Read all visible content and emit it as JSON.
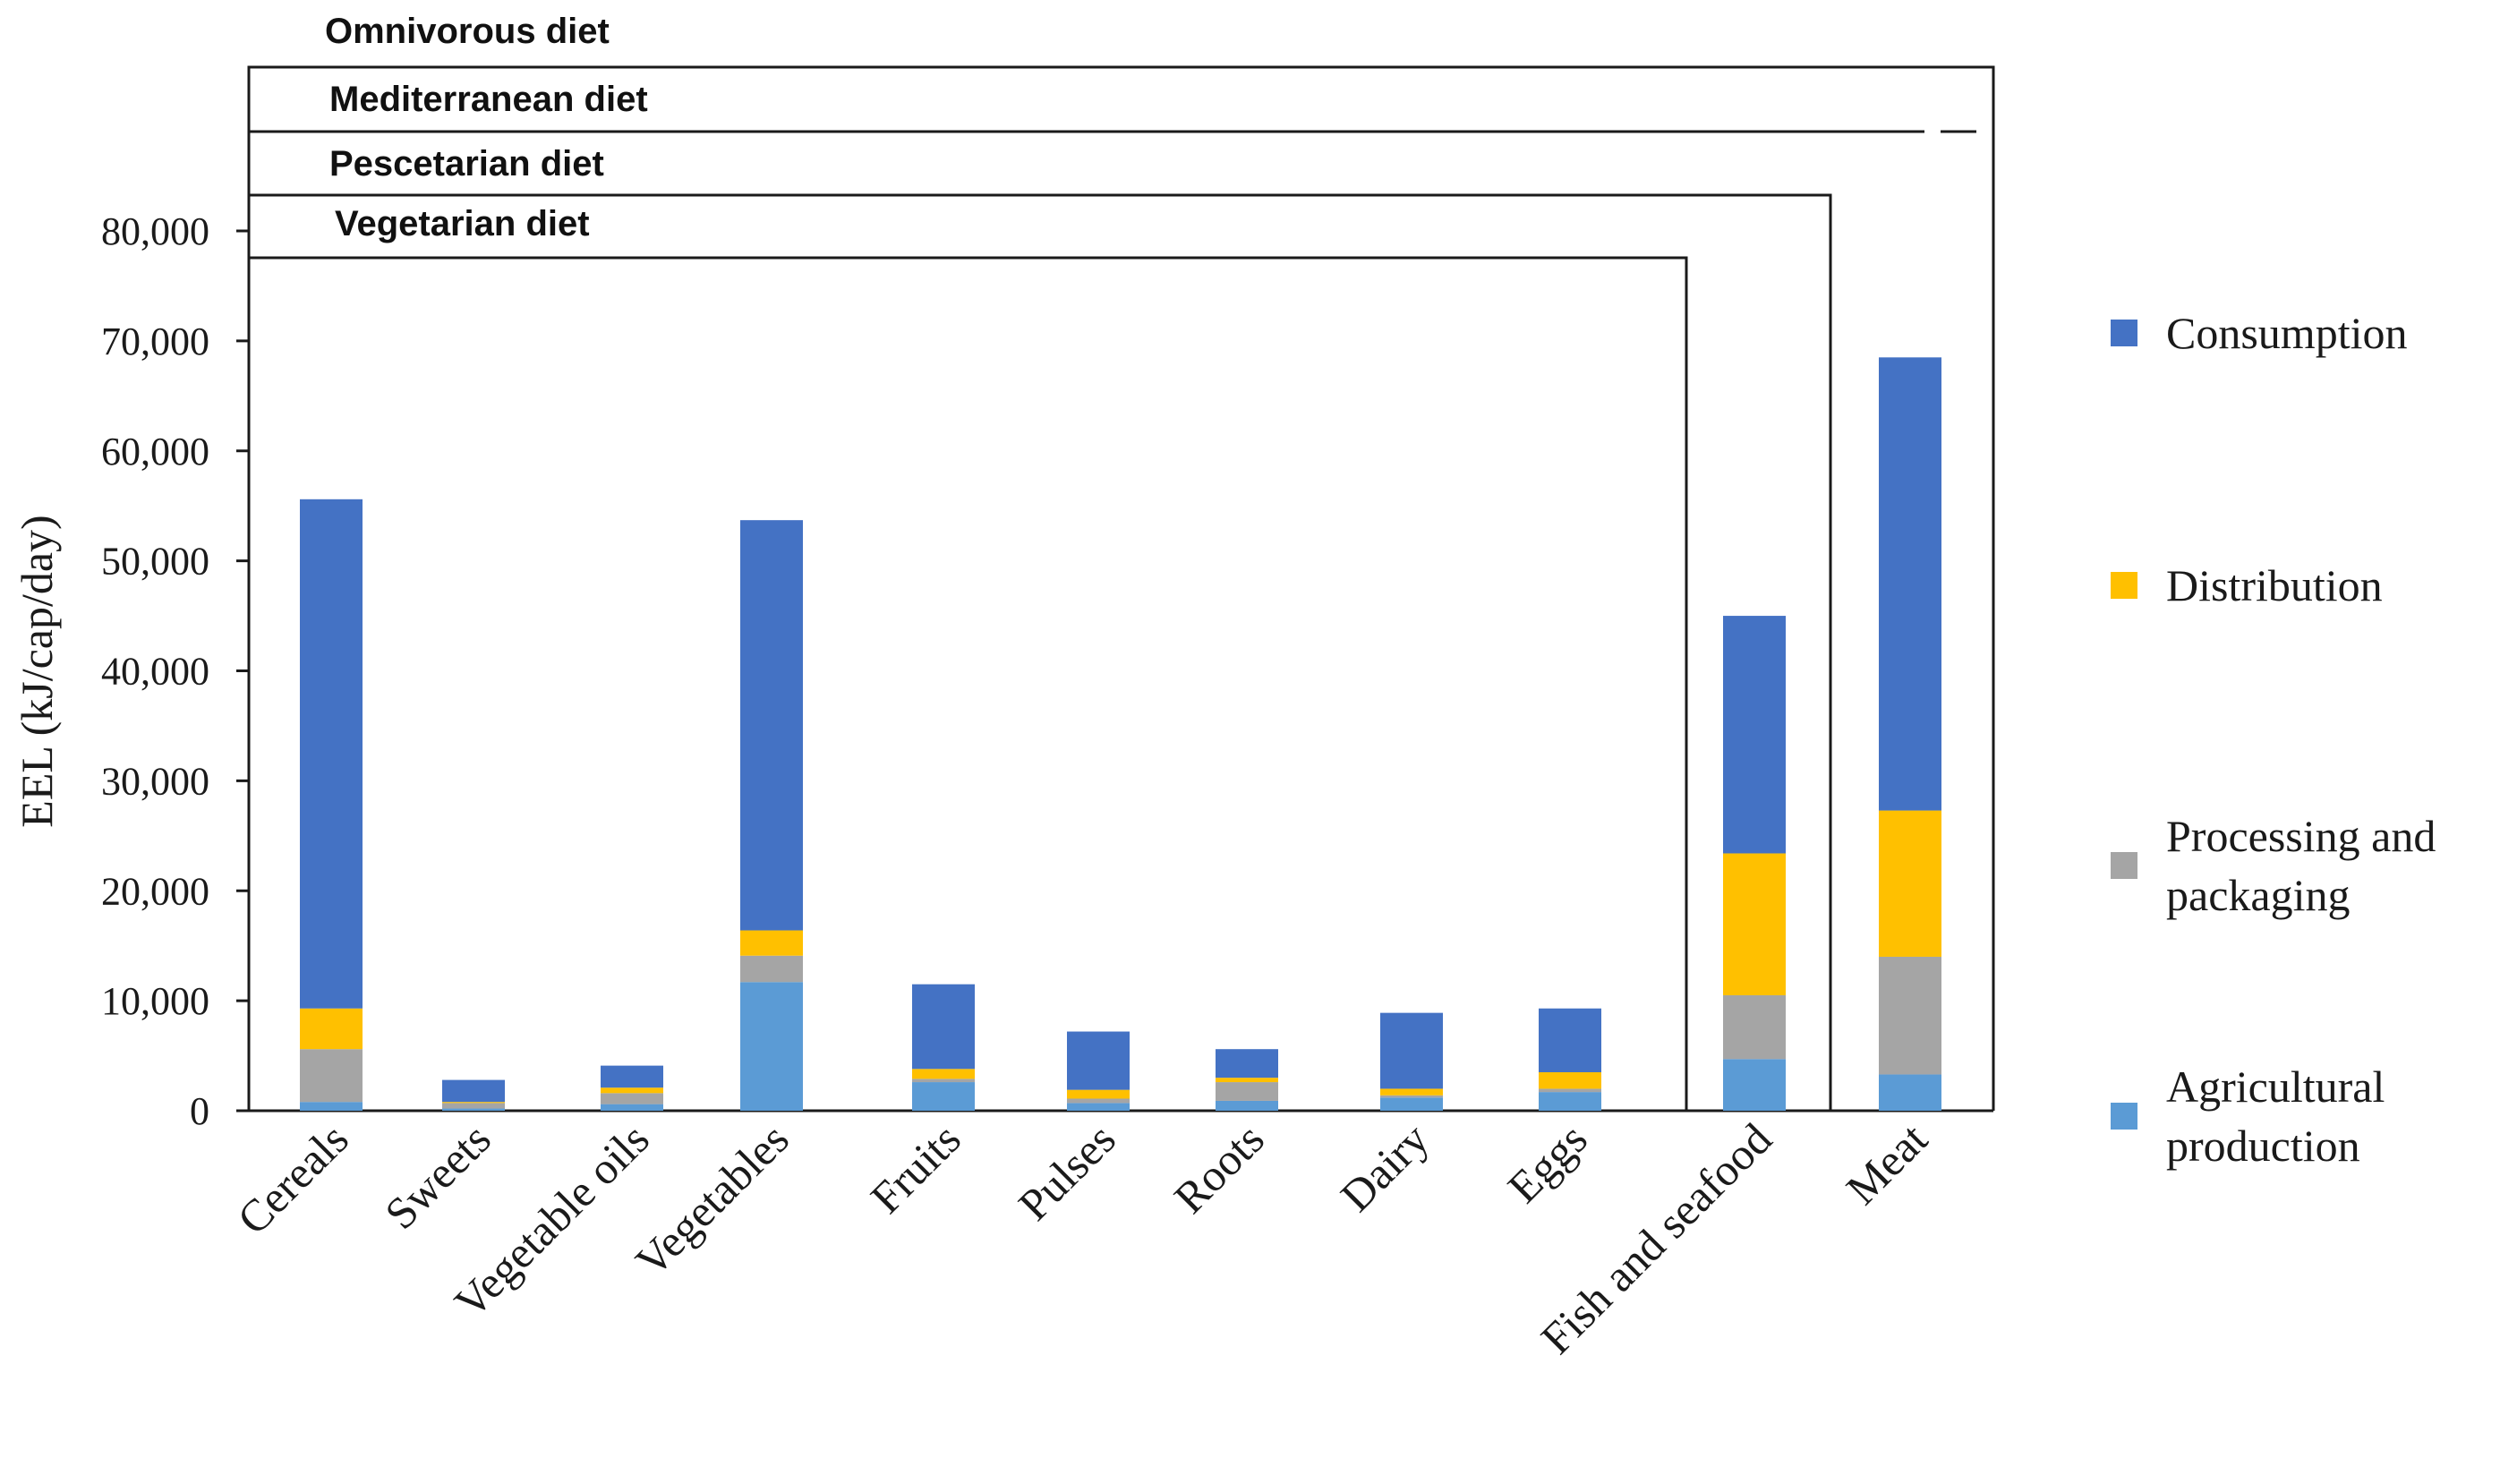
{
  "chart_data": {
    "type": "bar",
    "stacked": true,
    "title": "",
    "xlabel": "",
    "ylabel": "EEL (kJ/cap/day)",
    "ylim": [
      0,
      80000
    ],
    "yticks": [
      0,
      10000,
      20000,
      30000,
      40000,
      50000,
      60000,
      70000,
      80000
    ],
    "ytick_labels": [
      "0",
      "10,000",
      "20,000",
      "30,000",
      "40,000",
      "50,000",
      "60,000",
      "70,000",
      "80,000"
    ],
    "categories": [
      "Cereals",
      "Sweets",
      "Vegetable oils",
      "Vegetables",
      "Fruits",
      "Pulses",
      "Roots",
      "Dairy",
      "Eggs",
      "Fish and seafood",
      "Meat"
    ],
    "series": [
      {
        "name": "Agricultural production",
        "color": "#5b9bd5",
        "values": [
          800,
          200,
          600,
          11700,
          2600,
          700,
          900,
          1200,
          1700,
          4700,
          3300
        ]
      },
      {
        "name": "Processing and packaging",
        "color": "#a5a5a5",
        "values": [
          4800,
          500,
          1000,
          2400,
          300,
          400,
          1700,
          200,
          300,
          5800,
          10700
        ]
      },
      {
        "name": "Distribution",
        "color": "#ffc000",
        "values": [
          3700,
          100,
          500,
          2300,
          900,
          800,
          400,
          600,
          1500,
          12900,
          13300
        ]
      },
      {
        "name": "Consumption",
        "color": "#4472c4",
        "values": [
          46300,
          2000,
          2000,
          37300,
          7700,
          5300,
          2600,
          6900,
          5800,
          21600,
          41200
        ]
      }
    ],
    "legend": {
      "position": "right",
      "order": [
        "Consumption",
        "Distribution",
        "Processing and packaging",
        "Agricultural production"
      ],
      "lines": {
        "Consumption": [
          "Consumption"
        ],
        "Distribution": [
          "Distribution"
        ],
        "Processing and packaging": [
          "Processing and",
          "packaging"
        ],
        "Agricultural production": [
          "Agricultural",
          "production"
        ]
      }
    },
    "diet_groups": [
      {
        "label": "Omnivorous diet",
        "from": "Cereals",
        "to": "Meat"
      },
      {
        "label": "Mediterranean diet",
        "from": "Cereals",
        "to": "Meat",
        "meat_partial": true
      },
      {
        "label": "Pescetarian diet",
        "from": "Cereals",
        "to": "Fish and seafood"
      },
      {
        "label": "Vegetarian diet",
        "from": "Cereals",
        "to": "Eggs"
      }
    ]
  }
}
